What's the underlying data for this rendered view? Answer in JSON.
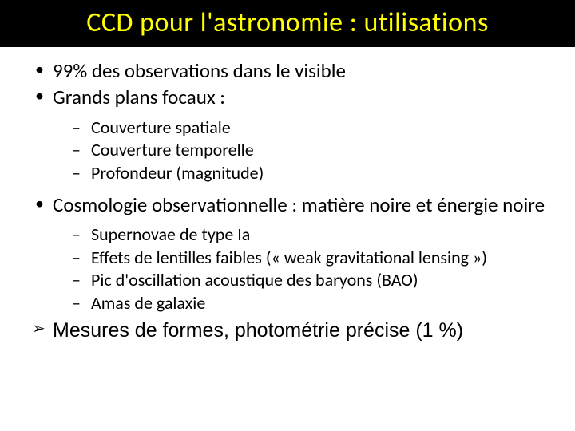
{
  "title": "CCD pour l'astronomie : utilisations",
  "b1": "99% des observations dans le visible",
  "b2": "Grands plans focaux :",
  "s1": "Couverture spatiale",
  "s2": "Couverture temporelle",
  "s3": "Profondeur (magnitude)",
  "b3": "Cosmologie observationnelle : matière noire et énergie noire",
  "s4": "Supernovae de type Ia",
  "s5": "Effets de lentilles faibles (« weak gravitational lensing »)",
  "s6": "Pic d'oscillation acoustique des baryons (BAO)",
  "s7": "Amas de galaxie",
  "b4": "Mesures de formes, photométrie précise (1 %)"
}
